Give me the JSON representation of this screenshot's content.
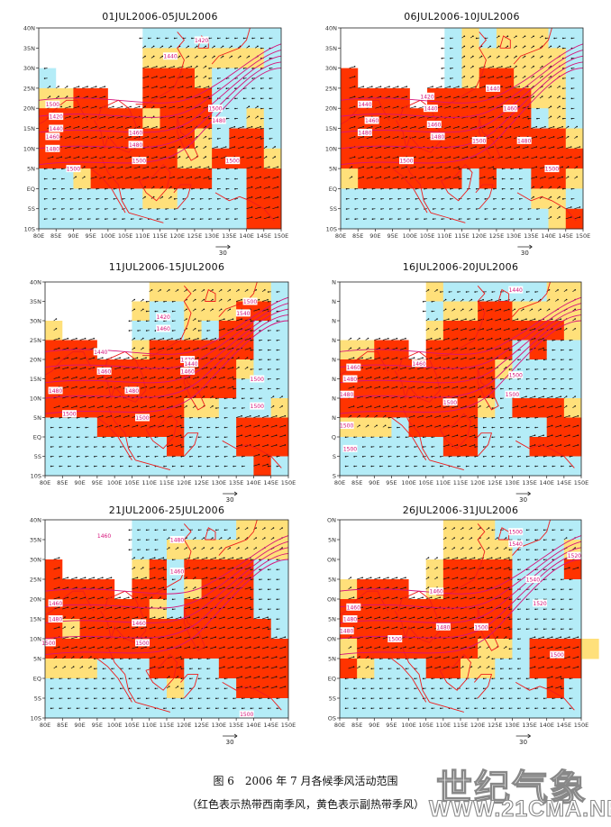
{
  "figure": {
    "caption_line1": "图 6　2006 年 7 月各候季风活动范围",
    "caption_line2": "（红色表示热带西南季风，黄色表示副热带季风）",
    "watermark_cn": "世纪气象",
    "watermark_url": "WWW.21CMA.NET"
  },
  "colors": {
    "red": "#ff3300",
    "yellow": "#ffe07a",
    "orange": "#f9b944",
    "blue": "#b4ecf7",
    "white": "#ffffff",
    "contour": "#d6137a",
    "coast": "#ee1c1c",
    "arrow": "#111111"
  },
  "chart_data": {
    "type": "heatmap",
    "lon_range": [
      80,
      150
    ],
    "lat_range": [
      -10,
      40
    ],
    "grid_step_deg": 5,
    "legend": {
      "r": "tropical southwest monsoon",
      "y": "subtropical monsoon",
      "b": "no monsoon",
      "w": "missing"
    },
    "lon_ticks": [
      "80E",
      "85E",
      "90E",
      "95E",
      "100E",
      "105E",
      "110E",
      "115E",
      "120E",
      "125E",
      "130E",
      "135E",
      "140E",
      "145E",
      "150E"
    ],
    "vector_scale": "30",
    "panels": [
      {
        "title": "01JUL2006-05JUL2006",
        "lat_ticks": [
          "40N",
          "35N",
          "30N",
          "25N",
          "20N",
          "15N",
          "10N",
          "5N",
          "EQ",
          "5S",
          "10S"
        ],
        "grid": [
          "wwwwwwbbbbbbbb",
          "wwwwwwyyyyyyyb",
          "bwwwwwrrrybbbb",
          "yyrrwwrrrrbbbb",
          "rrrrrryrrrbbyb",
          "rrrrrrrrrybrrb",
          "rrrrrrrryyrrry",
          "bbyrrrrrrrbbrr",
          "bbbbbbyybbbbrr",
          "bbbbbbbbbbbbrr"
        ],
        "contour_labels": [
          {
            "v": "1420",
            "lon": 127,
            "lat": 37
          },
          {
            "v": "1440",
            "lon": 118,
            "lat": 33
          },
          {
            "v": "1500",
            "lon": 84,
            "lat": 21
          },
          {
            "v": "1420",
            "lon": 85,
            "lat": 18
          },
          {
            "v": "1440",
            "lon": 85,
            "lat": 15
          },
          {
            "v": "1460",
            "lon": 84,
            "lat": 13
          },
          {
            "v": "1480",
            "lon": 84,
            "lat": 10
          },
          {
            "v": "1460",
            "lon": 108,
            "lat": 14
          },
          {
            "v": "1480",
            "lon": 108,
            "lat": 11
          },
          {
            "v": "1500",
            "lon": 109,
            "lat": 7
          },
          {
            "v": "1500",
            "lon": 90,
            "lat": 5
          },
          {
            "v": "1500",
            "lon": 131,
            "lat": 20
          },
          {
            "v": "1480",
            "lon": 132,
            "lat": 17
          },
          {
            "v": "1500",
            "lon": 136,
            "lat": 7
          }
        ]
      },
      {
        "title": "06JUL2006-10JUL2006",
        "lat_ticks": [
          "40N",
          "35N",
          "30N",
          "25N",
          "20N",
          "15N",
          "10N",
          "5N",
          "EQ",
          "5S",
          "10S"
        ],
        "grid": [
          "wwwwwwbybyyybb",
          "wwwwwwbyyyyyyb",
          "rwwwwwbyrryyyb",
          "rrrrwrrrrrryyb",
          "rrrrrrrrrrrbyb",
          "rrrrrrrrrrrrry",
          "rrrrrrrrrrrrrr",
          "yrrrrrrbrbbrry",
          "bbbbbbbbbbbyyb",
          "bbbbbbbbbbbbyr"
        ],
        "contour_labels": [
          {
            "v": "1440",
            "lon": 124,
            "lat": 25
          },
          {
            "v": "1420",
            "lon": 105,
            "lat": 23
          },
          {
            "v": "1440",
            "lon": 87,
            "lat": 21
          },
          {
            "v": "1440",
            "lon": 106,
            "lat": 20
          },
          {
            "v": "1460",
            "lon": 129,
            "lat": 20
          },
          {
            "v": "1460",
            "lon": 89,
            "lat": 17
          },
          {
            "v": "1460",
            "lon": 107,
            "lat": 16
          },
          {
            "v": "1480",
            "lon": 87,
            "lat": 14
          },
          {
            "v": "1480",
            "lon": 108,
            "lat": 13
          },
          {
            "v": "1500",
            "lon": 120,
            "lat": 12
          },
          {
            "v": "1480",
            "lon": 133,
            "lat": 12
          },
          {
            "v": "1500",
            "lon": 99,
            "lat": 7
          },
          {
            "v": "1500",
            "lon": 141,
            "lat": 5
          }
        ]
      },
      {
        "title": "11JUL2006-15JUL2006",
        "lat_ticks": [
          "40N",
          "35N",
          "30N",
          "25N",
          "20N",
          "15N",
          "10N",
          "5N",
          "EQ",
          "5S",
          "10S"
        ],
        "grid": [
          "wwwwwwyyyyyyyb",
          "wwwwwybbyyyrrb",
          "ywwwwbbbybrrbb",
          "rrrwwyrrrrrrbb",
          "rrrrrrrrrrrybb",
          "rrrrrrrrrrrbbb",
          "rrrrrrrryybbby",
          "bbbrrrrrbbbrrr",
          "bbbbbbbrbbbrrr",
          "bbbbbbbbbbbbrb"
        ],
        "contour_labels": [
          {
            "v": "1500",
            "lon": 139,
            "lat": 35
          },
          {
            "v": "1540",
            "lon": 137,
            "lat": 32
          },
          {
            "v": "1420",
            "lon": 114,
            "lat": 31
          },
          {
            "v": "1460",
            "lon": 114,
            "lat": 28
          },
          {
            "v": "1440",
            "lon": 96,
            "lat": 22
          },
          {
            "v": "1420",
            "lon": 121,
            "lat": 20
          },
          {
            "v": "1440",
            "lon": 122,
            "lat": 19
          },
          {
            "v": "1460",
            "lon": 121,
            "lat": 17
          },
          {
            "v": "1460",
            "lon": 97,
            "lat": 17
          },
          {
            "v": "1500",
            "lon": 141,
            "lat": 15
          },
          {
            "v": "1480",
            "lon": 83,
            "lat": 12
          },
          {
            "v": "1480",
            "lon": 105,
            "lat": 12
          },
          {
            "v": "1500",
            "lon": 141,
            "lat": 8
          },
          {
            "v": "1500",
            "lon": 87,
            "lat": 6
          },
          {
            "v": "1500",
            "lon": 108,
            "lat": 5
          }
        ]
      },
      {
        "title": "16JUL2006-20JUL2006",
        "lat_ticks": [
          "N",
          "N",
          "N",
          "N",
          "N",
          "N",
          "N",
          "N",
          "Q",
          "S",
          "S"
        ],
        "grid": [
          "wwwwwybbbbbbyy",
          "wwwwwbyyrryyyy",
          "wwwwwyrrrrrrry",
          "yyrrwrrrrrbrbb",
          "rrrrrrrrrybbbb",
          "rrrrrrrrrbbbbb",
          "rrrrrrrrybrrry",
          "yyybrrrrbbbbrr",
          "bbbbbbrrbbbrrr",
          "bbbbbbbbbbbbbb"
        ],
        "contour_labels": [
          {
            "v": "1440",
            "lon": 131,
            "lat": 38
          },
          {
            "v": "1460",
            "lon": 84,
            "lat": 18
          },
          {
            "v": "1460",
            "lon": 103,
            "lat": 19
          },
          {
            "v": "1480",
            "lon": 83,
            "lat": 15
          },
          {
            "v": "1500",
            "lon": 131,
            "lat": 16
          },
          {
            "v": "1480",
            "lon": 82,
            "lat": 11
          },
          {
            "v": "1500",
            "lon": 112,
            "lat": 9
          },
          {
            "v": "1500",
            "lon": 130,
            "lat": 11
          },
          {
            "v": "1500",
            "lon": 82,
            "lat": 3
          },
          {
            "v": "1500",
            "lon": 83,
            "lat": -3
          }
        ]
      },
      {
        "title": "21JUL2006-25JUL2006",
        "lat_ticks": [
          "40N",
          "35N",
          "30N",
          "25N",
          "20N",
          "15N",
          "10N",
          "5N",
          "EQ",
          "5S",
          "10S"
        ],
        "grid": [
          "wwwwwbbbbbbyyy",
          "wwwwwbbyyyyyyy",
          "rwwwwyrbrrrrbb",
          "rrrrwrrbyrrrbb",
          "rrrrrrybrrrrbb",
          "ryrrrrrrrrrrrb",
          "rrrrrrrrrrrrrr",
          "yyybbbrrbbrrrr",
          "bbbbbbbybbbrrr",
          "bbbbbbbbbbbbbb"
        ],
        "contour_labels": [
          {
            "v": "1460",
            "lon": 97,
            "lat": 36
          },
          {
            "v": "1480",
            "lon": 118,
            "lat": 35
          },
          {
            "v": "1460",
            "lon": 118,
            "lat": 27
          },
          {
            "v": "1460",
            "lon": 83,
            "lat": 19
          },
          {
            "v": "1480",
            "lon": 83,
            "lat": 15
          },
          {
            "v": "1460",
            "lon": 107,
            "lat": 14
          },
          {
            "v": "1500",
            "lon": 81,
            "lat": 9
          },
          {
            "v": "1500",
            "lon": 108,
            "lat": 9
          },
          {
            "v": "1500",
            "lon": 138,
            "lat": -9
          }
        ]
      },
      {
        "title": "26JUL2006-31JUL2006",
        "lat_ticks": [
          "ON",
          "5N",
          "ON",
          "5N",
          "ON",
          "5N",
          "ON",
          "5N",
          "EQ",
          "5S",
          "OS"
        ],
        "grid": [
          "wwwwwwyyybbbbb",
          "wwwwwwyyyybbby",
          "wwwwwyrrrrbbbr",
          "yrrrwyrrrrbbbb",
          "rrrrrrrrrrbbbb",
          "rrrrrrrrrrbbbb",
          "yrrrrrrryybrrry",
          "rybbbrryybbrrr",
          "bbbbbbbbbbbbrb",
          "bbbbbbbbbbbbbb"
        ],
        "contour_labels": [
          {
            "v": "1500",
            "lon": 131,
            "lat": 37
          },
          {
            "v": "1540",
            "lon": 131,
            "lat": 34
          },
          {
            "v": "1520",
            "lon": 148,
            "lat": 31
          },
          {
            "v": "1540",
            "lon": 136,
            "lat": 25
          },
          {
            "v": "1460",
            "lon": 108,
            "lat": 22
          },
          {
            "v": "1520",
            "lon": 138,
            "lat": 19
          },
          {
            "v": "1460",
            "lon": 84,
            "lat": 18
          },
          {
            "v": "1480",
            "lon": 83,
            "lat": 15
          },
          {
            "v": "1480",
            "lon": 82,
            "lat": 12
          },
          {
            "v": "1480",
            "lon": 110,
            "lat": 13
          },
          {
            "v": "1500",
            "lon": 121,
            "lat": 13
          },
          {
            "v": "1500",
            "lon": 96,
            "lat": 10
          },
          {
            "v": "1500",
            "lon": 143,
            "lat": 6
          }
        ]
      }
    ]
  }
}
